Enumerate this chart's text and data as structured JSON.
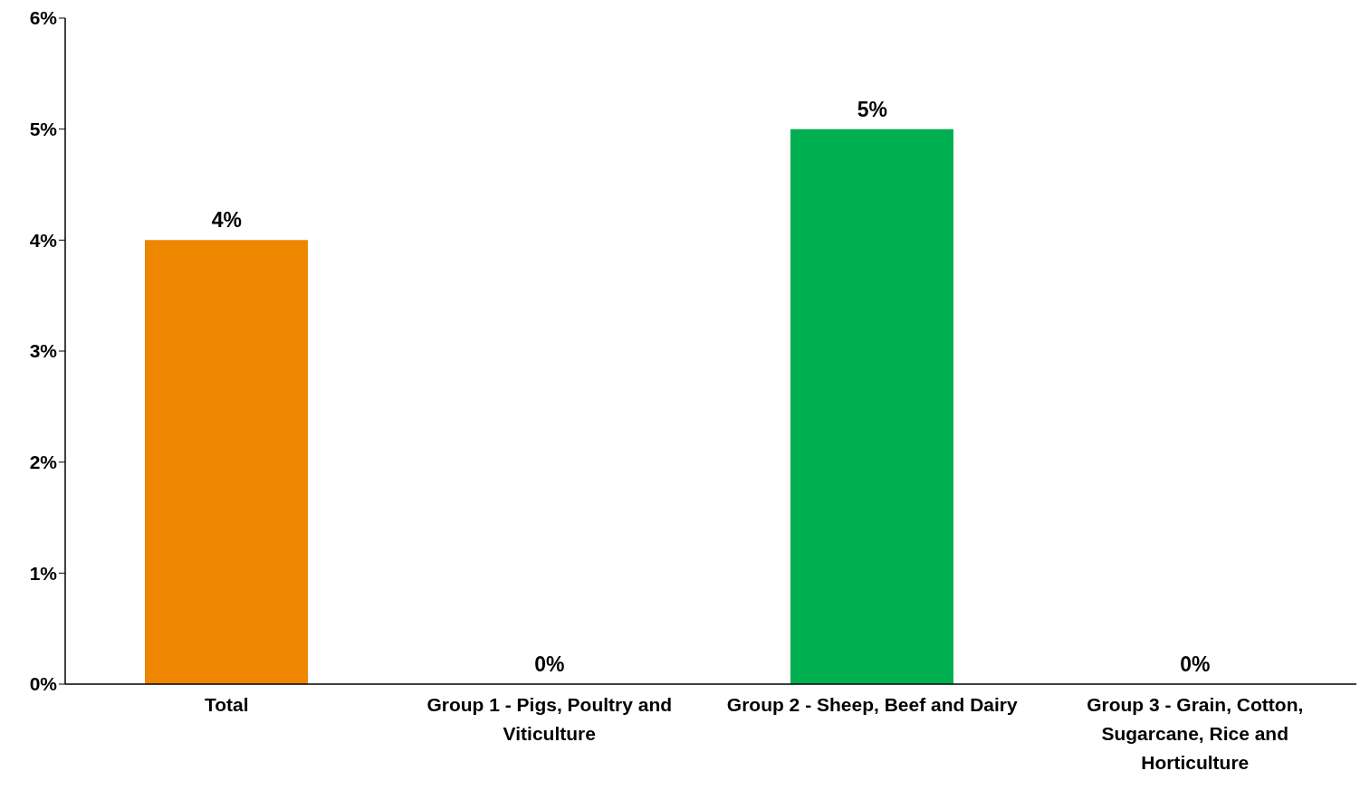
{
  "chart_data": {
    "type": "bar",
    "categories": [
      "Total",
      "Group 1 - Pigs, Poultry and Viticulture",
      "Group 2 - Sheep, Beef and Dairy",
      "Group 3 - Grain, Cotton, Sugarcane, Rice and Horticulture"
    ],
    "values": [
      4,
      0,
      5,
      0
    ],
    "colors": [
      "#ee8600",
      "#ee8600",
      "#00b050",
      "#00b050"
    ],
    "value_labels": [
      "4%",
      "0%",
      "5%",
      "0%"
    ],
    "ylim": [
      0,
      6
    ],
    "yticks": [
      {
        "value": 0,
        "label": "0%"
      },
      {
        "value": 1,
        "label": "1%"
      },
      {
        "value": 2,
        "label": "2%"
      },
      {
        "value": 3,
        "label": "3%"
      },
      {
        "value": 4,
        "label": "4%"
      },
      {
        "value": 5,
        "label": "5%"
      },
      {
        "value": 6,
        "label": "6%"
      }
    ],
    "grid": false,
    "legend": false
  }
}
